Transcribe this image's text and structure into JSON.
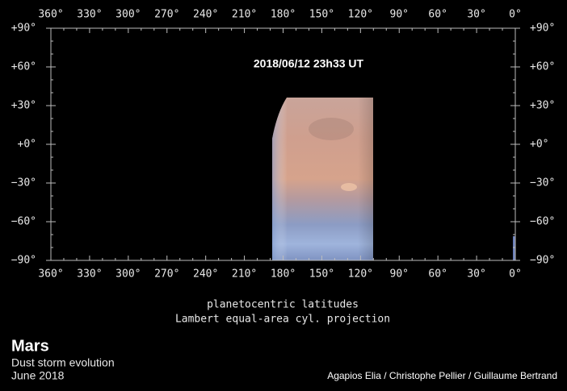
{
  "map": {
    "timestamp": "2018/06/12 23h33 UT",
    "xlim": [
      360,
      0
    ],
    "ylim": [
      -90,
      90
    ],
    "xticks": [
      {
        "value": 360,
        "label": "360°"
      },
      {
        "value": 330,
        "label": "330°"
      },
      {
        "value": 300,
        "label": "300°"
      },
      {
        "value": 270,
        "label": "270°"
      },
      {
        "value": 240,
        "label": "240°"
      },
      {
        "value": 210,
        "label": "210°"
      },
      {
        "value": 180,
        "label": "180°"
      },
      {
        "value": 150,
        "label": "150°"
      },
      {
        "value": 120,
        "label": "120°"
      },
      {
        "value": 90,
        "label": "90°"
      },
      {
        "value": 60,
        "label": "60°"
      },
      {
        "value": 30,
        "label": "30°"
      },
      {
        "value": 0,
        "label": "0°"
      }
    ],
    "yticks": [
      {
        "value": 90,
        "label": "+90°"
      },
      {
        "value": 60,
        "label": "+60°"
      },
      {
        "value": 30,
        "label": "+30°"
      },
      {
        "value": 0,
        "label": "+0°"
      },
      {
        "value": -30,
        "label": "−30°"
      },
      {
        "value": -60,
        "label": "−60°"
      },
      {
        "value": -90,
        "label": "−90°"
      }
    ],
    "caption": [
      "planetocentric latitudes",
      "Lambert equal-area cyl. projection"
    ]
  },
  "footer": {
    "title": "Mars",
    "subtitle": "Dust storm evolution",
    "date": "June 2018",
    "credit": "Agapios Elia / Christophe Pellier / Guillaume Bertrand"
  }
}
